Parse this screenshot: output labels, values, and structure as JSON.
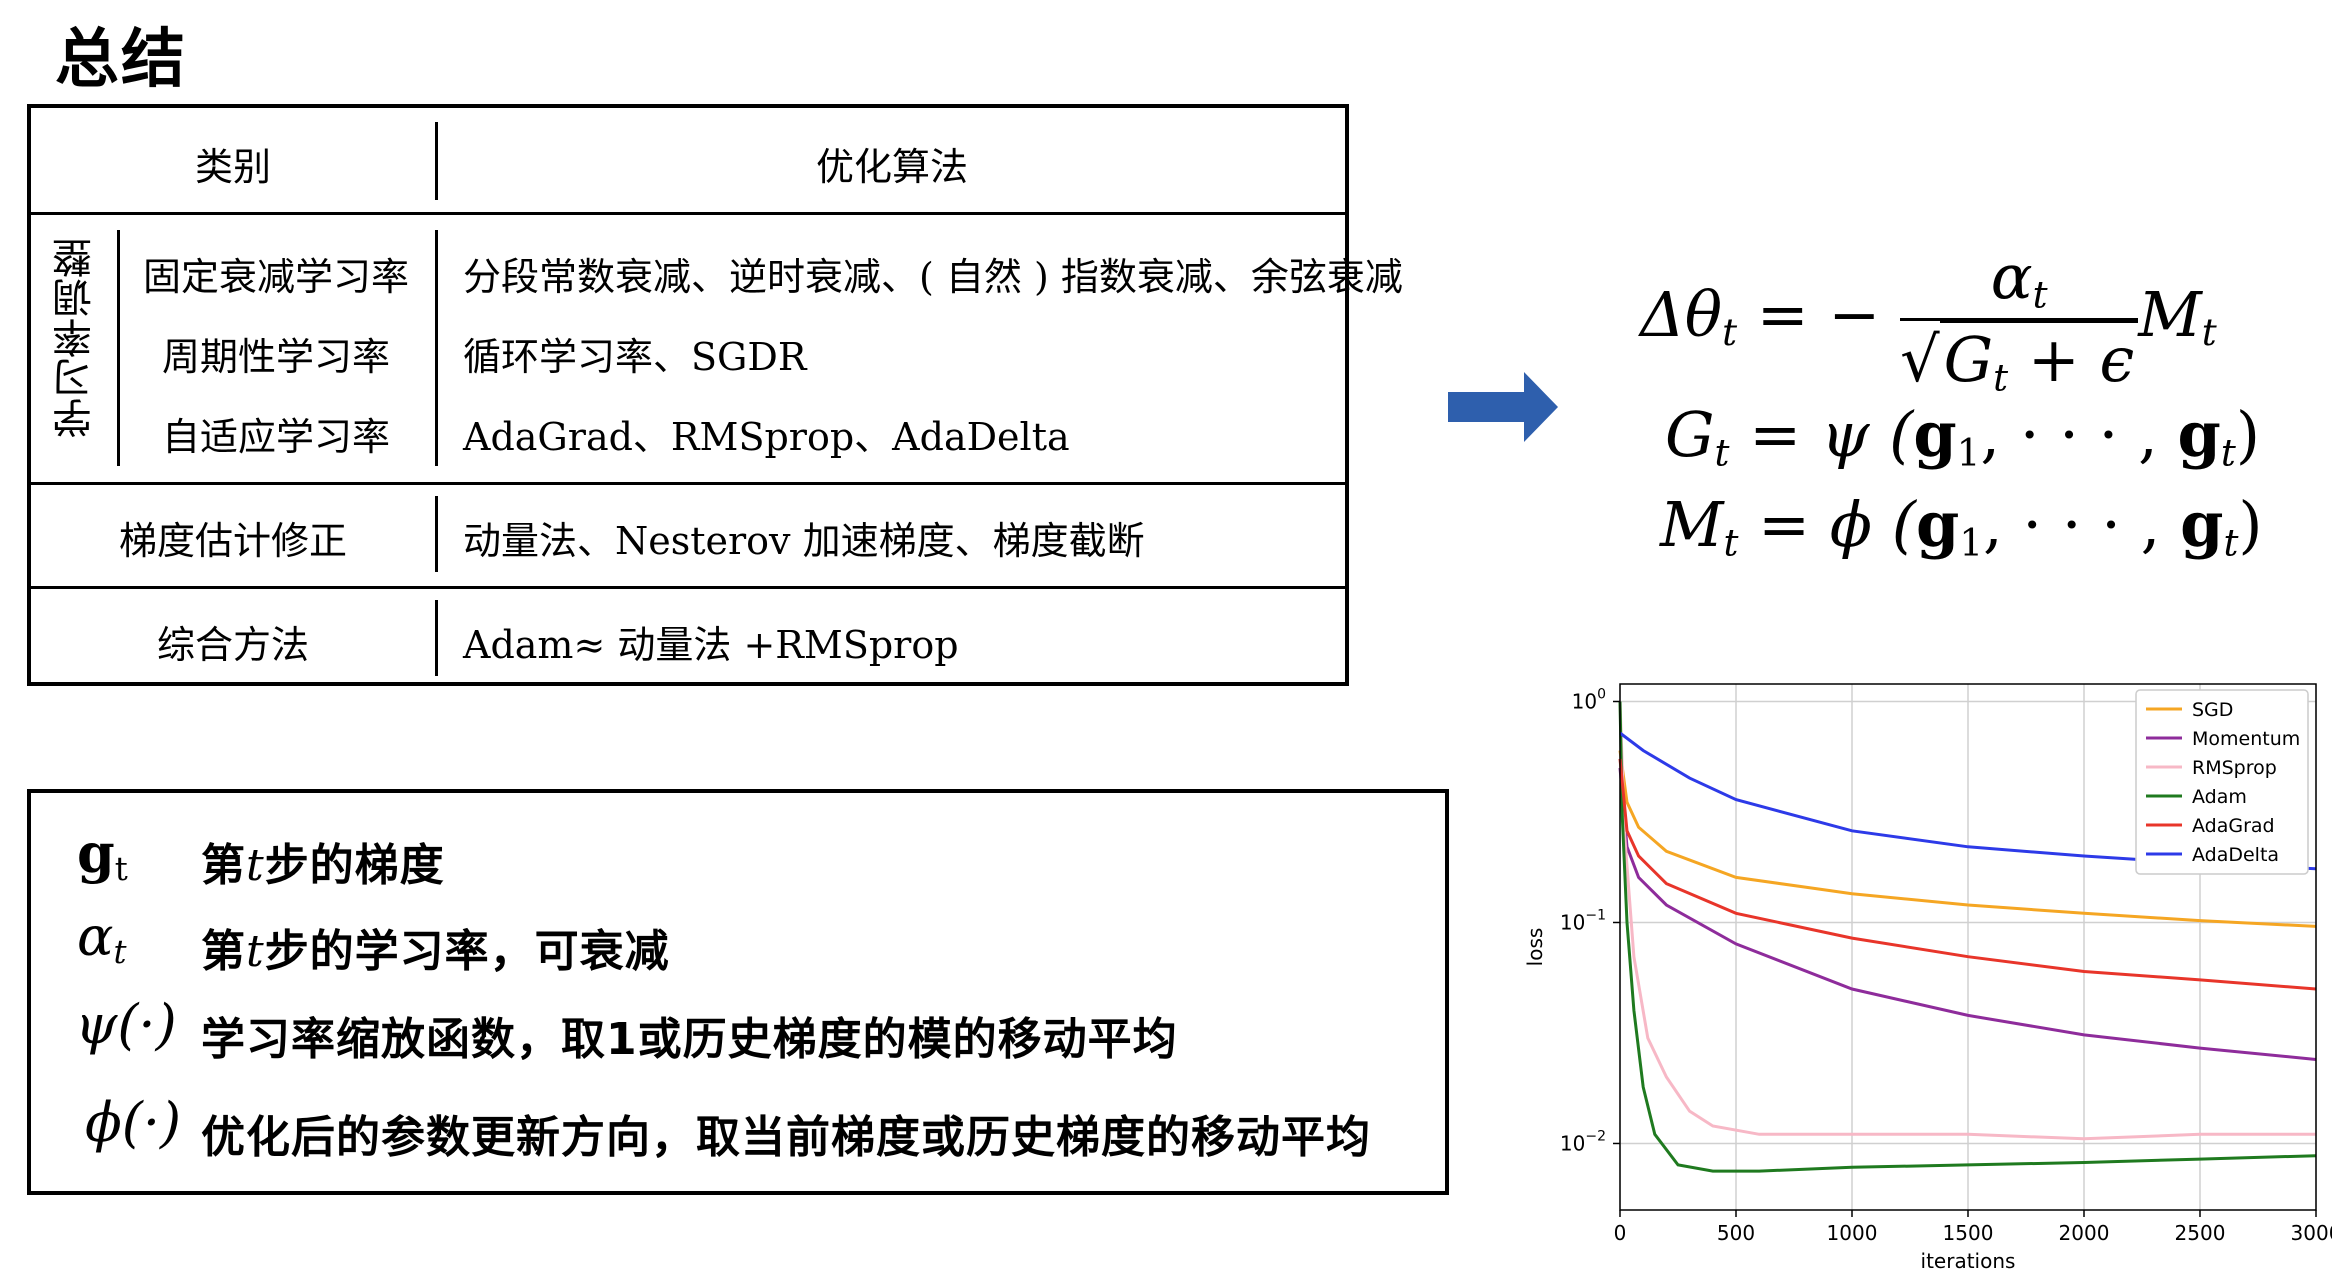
{
  "title": "总结",
  "table": {
    "header": {
      "category": "类别",
      "algorithm": "优化算法"
    },
    "group_label": "学习率调整",
    "rows": [
      {
        "category": "固定衰减学习率",
        "methods": "分段常数衰减、逆时衰减、( 自然 ) 指数衰减、余弦衰减"
      },
      {
        "category": "周期性学习率",
        "methods": "循环学习率、SGDR"
      },
      {
        "category": "自适应学习率",
        "methods": "AdaGrad、RMSprop、AdaDelta"
      },
      {
        "category": "梯度估计修正",
        "methods": "动量法、Nesterov 加速梯度、梯度截断"
      },
      {
        "category": "综合方法",
        "methods": "Adam≈ 动量法 +RMSprop"
      }
    ]
  },
  "formulas": {
    "eq1": {
      "lhs": "Δθ",
      "lhs_sub": "t",
      "eq": " = −",
      "num": "α",
      "num_sub": "t",
      "den": "G",
      "den_sub": "t",
      "den_rest": " + ϵ",
      "rhs": "M",
      "rhs_sub": "t"
    },
    "eq2": {
      "lhs": "G",
      "lhs_sub": "t",
      "body": " = ψ (",
      "g1": "g",
      "g1_sub": "1",
      "dots": ", · · · ,",
      "gt": "g",
      "gt_sub": "t",
      "close": ")"
    },
    "eq3": {
      "lhs": "M",
      "lhs_sub": "t",
      "body": " = ϕ (",
      "g1": "g",
      "g1_sub": "1",
      "dots": ", · · · ,",
      "gt": "g",
      "gt_sub": "t",
      "close": ")"
    }
  },
  "legend_box": [
    {
      "symbol": "g",
      "symbol_sub": "t",
      "text_a": "第",
      "text_t": "t",
      "text_b": "步的梯度"
    },
    {
      "symbol": "α",
      "symbol_sub": "t",
      "text_a": "第",
      "text_t": "t",
      "text_b": "步的学习率，可衰减"
    },
    {
      "symbol": "ψ(·)",
      "text": "学习率缩放函数，取1或历史梯度的模的移动平均"
    },
    {
      "symbol": "ϕ(·)",
      "text": "优化后的参数更新方向，取当前梯度或历史梯度的移动平均"
    }
  ],
  "chart_data": {
    "type": "line",
    "xlabel": "iterations",
    "ylabel": "loss",
    "yscale": "log",
    "xlim": [
      0,
      3000
    ],
    "ylim": [
      0.005,
      1.2
    ],
    "xticks": [
      "0",
      "500",
      "1000",
      "1500",
      "2000",
      "2500",
      "3000"
    ],
    "yticks": [
      {
        "value": 1,
        "base": "10",
        "exp": "0"
      },
      {
        "value": 0.1,
        "base": "10",
        "exp": "−1"
      },
      {
        "value": 0.01,
        "base": "10",
        "exp": "−2"
      }
    ],
    "grid": true,
    "legend_position": "top-right",
    "series": [
      {
        "name": "SGD",
        "color": "#f5a623",
        "x": [
          0,
          30,
          80,
          200,
          500,
          1000,
          1500,
          2000,
          2500,
          3000
        ],
        "y": [
          0.6,
          0.35,
          0.27,
          0.21,
          0.16,
          0.135,
          0.12,
          0.11,
          0.102,
          0.096
        ]
      },
      {
        "name": "Momentum",
        "color": "#8e2c9b",
        "x": [
          0,
          30,
          80,
          200,
          500,
          1000,
          1500,
          2000,
          2500,
          3000
        ],
        "y": [
          0.5,
          0.22,
          0.16,
          0.12,
          0.08,
          0.05,
          0.038,
          0.031,
          0.027,
          0.024
        ]
      },
      {
        "name": "RMSprop",
        "color": "#f7b8c6",
        "x": [
          0,
          20,
          60,
          120,
          200,
          300,
          400,
          600,
          1000,
          1500,
          2000,
          2500,
          3000
        ],
        "y": [
          1.0,
          0.25,
          0.07,
          0.03,
          0.02,
          0.014,
          0.012,
          0.011,
          0.011,
          0.011,
          0.0105,
          0.011,
          0.011
        ]
      },
      {
        "name": "Adam",
        "color": "#1f7a1f",
        "x": [
          0,
          10,
          30,
          60,
          100,
          150,
          250,
          400,
          600,
          1000,
          1500,
          2000,
          2500,
          3000
        ],
        "y": [
          1.0,
          0.3,
          0.1,
          0.04,
          0.018,
          0.011,
          0.008,
          0.0075,
          0.0075,
          0.0078,
          0.008,
          0.0082,
          0.0085,
          0.0088
        ]
      },
      {
        "name": "AdaGrad",
        "color": "#e8352a",
        "x": [
          0,
          30,
          80,
          200,
          500,
          1000,
          1500,
          2000,
          2500,
          3000
        ],
        "y": [
          0.55,
          0.26,
          0.2,
          0.15,
          0.11,
          0.085,
          0.07,
          0.06,
          0.055,
          0.05
        ]
      },
      {
        "name": "AdaDelta",
        "color": "#2d3ae8",
        "x": [
          0,
          100,
          300,
          500,
          1000,
          1500,
          2000,
          2500,
          3000
        ],
        "y": [
          0.72,
          0.6,
          0.45,
          0.36,
          0.26,
          0.22,
          0.2,
          0.185,
          0.175
        ]
      }
    ]
  }
}
